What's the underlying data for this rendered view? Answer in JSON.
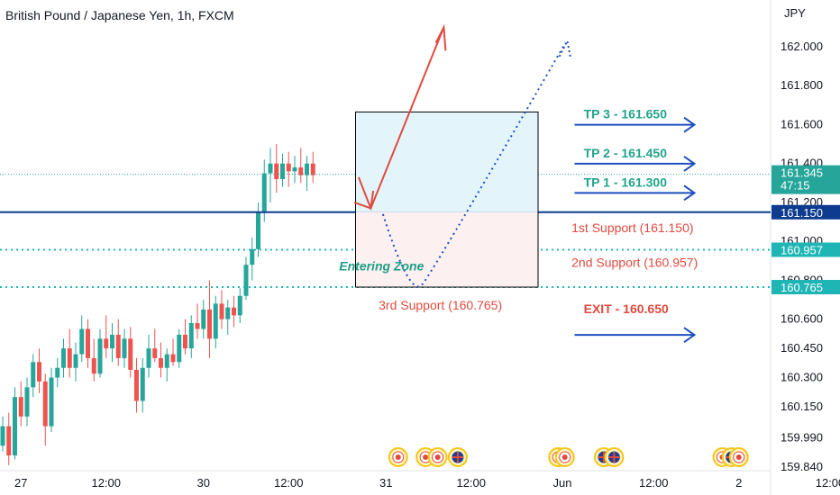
{
  "header": {
    "title": "British Pound / Japanese Yen, 1h, FXCM",
    "currency": "JPY"
  },
  "colors": {
    "up": "#26a69a",
    "down": "#ef5350",
    "navy": "#0d3b8f",
    "teal": "#1fb5b5",
    "tp_text": "#22a38a",
    "support_text": "#e04a3f",
    "arrow_blue": "#1f4fbf",
    "target_zone": "#e3f5fb",
    "stop_zone": "#fdf0f0"
  },
  "chart_data": {
    "type": "candlestick",
    "symbol": "GBPJPY",
    "interval": "1h",
    "ylim": [
      159.8,
      162.2
    ],
    "yticks": [
      "162.000",
      "161.800",
      "161.600",
      "161.400",
      "161.200",
      "161.000",
      "160.800",
      "160.600",
      "160.450",
      "160.300",
      "160.150",
      "159.990",
      "159.840"
    ],
    "xticks": [
      {
        "label": "27",
        "slot": 3
      },
      {
        "label": "12:00",
        "slot": 17
      },
      {
        "label": "30",
        "slot": 33
      },
      {
        "label": "12:00",
        "slot": 47
      },
      {
        "label": "31",
        "slot": 63
      },
      {
        "label": "12:00",
        "slot": 77
      },
      {
        "label": "Jun",
        "slot": 92
      },
      {
        "label": "12:00",
        "slot": 107
      },
      {
        "label": "2",
        "slot": 121
      },
      {
        "label": "12:00",
        "slot": 136
      }
    ],
    "candles": [
      [
        159.95,
        160.1,
        159.92,
        160.05
      ],
      [
        160.05,
        160.12,
        159.85,
        159.9
      ],
      [
        159.9,
        160.25,
        159.88,
        160.2
      ],
      [
        160.2,
        160.28,
        160.05,
        160.1
      ],
      [
        160.1,
        160.3,
        160.05,
        160.25
      ],
      [
        160.25,
        160.42,
        160.2,
        160.38
      ],
      [
        160.38,
        160.45,
        160.22,
        160.28
      ],
      [
        160.28,
        160.32,
        159.95,
        160.05
      ],
      [
        160.05,
        160.35,
        160.02,
        160.3
      ],
      [
        160.3,
        160.4,
        160.25,
        160.35
      ],
      [
        160.35,
        160.5,
        160.3,
        160.45
      ],
      [
        160.45,
        160.55,
        160.3,
        160.35
      ],
      [
        160.35,
        160.48,
        160.28,
        160.42
      ],
      [
        160.42,
        160.62,
        160.38,
        160.55
      ],
      [
        160.55,
        160.6,
        160.35,
        160.4
      ],
      [
        160.4,
        160.5,
        160.28,
        160.32
      ],
      [
        160.32,
        160.55,
        160.3,
        160.5
      ],
      [
        160.5,
        160.62,
        160.4,
        160.45
      ],
      [
        160.45,
        160.58,
        160.38,
        160.52
      ],
      [
        160.52,
        160.6,
        160.36,
        160.4
      ],
      [
        160.4,
        160.55,
        160.35,
        160.5
      ],
      [
        160.5,
        160.56,
        160.3,
        160.34
      ],
      [
        160.34,
        160.4,
        160.12,
        160.18
      ],
      [
        160.18,
        160.4,
        160.12,
        160.35
      ],
      [
        160.35,
        160.52,
        160.3,
        160.45
      ],
      [
        160.45,
        160.55,
        160.38,
        160.4
      ],
      [
        160.4,
        160.48,
        160.3,
        160.35
      ],
      [
        160.35,
        160.45,
        160.28,
        160.42
      ],
      [
        160.42,
        160.5,
        160.36,
        160.38
      ],
      [
        160.38,
        160.55,
        160.35,
        160.52
      ],
      [
        160.52,
        160.6,
        160.42,
        160.45
      ],
      [
        160.45,
        160.62,
        160.4,
        160.58
      ],
      [
        160.58,
        160.68,
        160.5,
        160.55
      ],
      [
        160.55,
        160.7,
        160.5,
        160.65
      ],
      [
        160.65,
        160.8,
        160.4,
        160.5
      ],
      [
        160.5,
        160.72,
        160.45,
        160.68
      ],
      [
        160.68,
        160.75,
        160.55,
        160.6
      ],
      [
        160.6,
        160.7,
        160.52,
        160.66
      ],
      [
        160.66,
        160.72,
        160.56,
        160.62
      ],
      [
        160.62,
        160.76,
        160.58,
        160.72
      ],
      [
        160.72,
        160.92,
        160.7,
        160.88
      ],
      [
        160.88,
        161.02,
        160.8,
        160.96
      ],
      [
        160.96,
        161.2,
        160.92,
        161.15
      ],
      [
        161.15,
        161.42,
        161.1,
        161.35
      ],
      [
        161.35,
        161.48,
        161.2,
        161.4
      ],
      [
        161.4,
        161.5,
        161.25,
        161.32
      ],
      [
        161.32,
        161.45,
        161.28,
        161.4
      ],
      [
        161.4,
        161.46,
        161.28,
        161.36
      ],
      [
        161.36,
        161.44,
        161.3,
        161.38
      ],
      [
        161.38,
        161.48,
        161.3,
        161.34
      ],
      [
        161.34,
        161.44,
        161.26,
        161.4
      ],
      [
        161.4,
        161.46,
        161.3,
        161.34
      ]
    ],
    "first_slot": 0,
    "last_price": {
      "value": 161.345,
      "countdown": "47:15"
    },
    "levels": [
      {
        "label": "161.150",
        "value": 161.15,
        "style": "solid",
        "color": "#0d3b8f"
      },
      {
        "label": "160.957",
        "value": 160.957,
        "style": "dotted",
        "color": "#1fb5b5"
      },
      {
        "label": "160.765",
        "value": 160.765,
        "style": "dotted",
        "color": "#1fb5b5"
      }
    ],
    "annotations": {
      "tp3": {
        "text": "TP 3 - 161.650",
        "value": 161.65
      },
      "tp2": {
        "text": "TP 2 - 161.450",
        "value": 161.45
      },
      "tp1": {
        "text": "TP 1 - 161.300",
        "value": 161.3
      },
      "exit": {
        "text": "EXIT - 160.650",
        "value": 160.65
      },
      "support1": {
        "text": "1st Support (161.150)"
      },
      "support2": {
        "text": "2nd Support (160.957)"
      },
      "support3": {
        "text": "3rd Support (160.765)"
      },
      "zone": {
        "text": "Entering Zone"
      }
    },
    "position_box": {
      "slot_start": 58,
      "slot_end": 88,
      "top": 161.665,
      "entry": 161.15,
      "bottom": 160.765
    }
  }
}
